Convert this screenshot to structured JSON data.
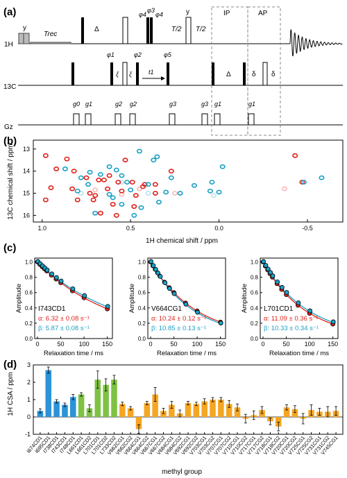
{
  "panels": {
    "a": "(a)",
    "b": "(b)",
    "c": "(c)",
    "d": "(d)"
  },
  "pulse_sequence": {
    "channels": [
      "1H",
      "13C",
      "Gz"
    ],
    "h_labels": [
      "y",
      "Trec",
      "Δ",
      "φ4",
      "φ3",
      "φ4",
      "T/2",
      "y",
      "T/2",
      "IP",
      "AP"
    ],
    "c_labels": [
      "φ1",
      "ξ",
      "ξ",
      "φ2",
      "t1",
      "φ5",
      "Δ",
      "δ",
      "δ"
    ],
    "g_labels": [
      "g0",
      "g1",
      "g2",
      "g2",
      "g3",
      "g3",
      "g1",
      "g1"
    ]
  },
  "colors": {
    "alpha": "#e0201b",
    "beta": "#1a9fc6",
    "ile": "#2b93d8",
    "leu": "#7dc242",
    "val": "#f5a623"
  },
  "spectrum": {
    "xlabel": "1H chemical shift / ppm",
    "ylabel": "13C chemical shift / ppm",
    "xticks": [
      "1.0",
      "0.5",
      "0.0",
      "-0.5"
    ],
    "yticks": [
      "13",
      "14",
      "15",
      "16"
    ],
    "xlim": [
      1.05,
      -0.7
    ],
    "ylim": [
      12.6,
      16.3
    ],
    "peaks_red": [
      [
        0.98,
        13.3
      ],
      [
        0.92,
        13.9
      ],
      [
        0.86,
        13.45
      ],
      [
        0.82,
        14.0
      ],
      [
        0.75,
        14.3
      ],
      [
        0.73,
        15.0
      ],
      [
        0.71,
        15.3
      ],
      [
        0.68,
        14.4
      ],
      [
        0.65,
        14.4
      ],
      [
        0.63,
        14.8
      ],
      [
        0.6,
        15.5
      ],
      [
        0.57,
        14.5
      ],
      [
        0.53,
        13.5
      ],
      [
        0.49,
        14.5
      ],
      [
        0.47,
        15.1
      ],
      [
        0.42,
        14.6
      ],
      [
        0.36,
        14.6
      ],
      [
        0.27,
        14.0
      ],
      [
        0.95,
        14.75
      ],
      [
        0.83,
        14.8
      ],
      [
        0.8,
        15.3
      ],
      [
        0.67,
        15.9
      ],
      [
        0.62,
        14.2
      ],
      [
        0.55,
        14.9
      ],
      [
        0.48,
        15.6
      ],
      [
        0.43,
        14.7
      ],
      [
        0.36,
        15.0
      ],
      [
        -0.43,
        13.3
      ],
      [
        -0.47,
        14.5
      ],
      [
        0.98,
        15.3
      ],
      [
        0.7,
        15.1
      ],
      [
        0.58,
        16.0
      ]
    ],
    "peaks_red_faint": [
      [
        0.7,
        14.85
      ],
      [
        0.55,
        15.05
      ],
      [
        0.45,
        14.8
      ],
      [
        0.25,
        15.0
      ],
      [
        -0.37,
        14.8
      ]
    ],
    "peaks_blue": [
      [
        0.78,
        14.3
      ],
      [
        0.73,
        14.05
      ],
      [
        0.7,
        15.9
      ],
      [
        0.62,
        13.8
      ],
      [
        0.58,
        13.95
      ],
      [
        0.55,
        14.2
      ],
      [
        0.52,
        14.5
      ],
      [
        0.5,
        14.85
      ],
      [
        0.45,
        13.1
      ],
      [
        0.4,
        14.6
      ],
      [
        0.37,
        13.5
      ],
      [
        0.27,
        14.3
      ],
      [
        0.22,
        15.0
      ],
      [
        0.04,
        14.5
      ],
      [
        0.0,
        14.95
      ],
      [
        -0.02,
        13.8
      ],
      [
        -0.58,
        14.3
      ],
      [
        0.87,
        13.9
      ],
      [
        0.8,
        14.9
      ],
      [
        0.67,
        14.15
      ],
      [
        0.6,
        15.2
      ],
      [
        0.55,
        15.5
      ],
      [
        0.48,
        16.0
      ],
      [
        0.34,
        15.4
      ],
      [
        0.3,
        14.95
      ],
      [
        0.14,
        14.65
      ],
      [
        0.05,
        14.9
      ],
      [
        -0.48,
        14.5
      ],
      [
        0.35,
        13.35
      ],
      [
        0.74,
        14.6
      ],
      [
        0.62,
        15.05
      ],
      [
        0.44,
        15.65
      ]
    ],
    "peaks_blue_faint": [
      [
        0.78,
        15.0
      ],
      [
        0.55,
        14.5
      ],
      [
        0.4,
        15.0
      ],
      [
        0.03,
        15.1
      ]
    ]
  },
  "decays": [
    {
      "name": "I743CD1",
      "alpha_text": "α: 6.32 ± 0.08 s⁻¹",
      "beta_text": "β: 5.87 ± 0.08 s⁻¹",
      "alpha_rate": 6.32,
      "beta_rate": 5.87
    },
    {
      "name": "V664CG1",
      "alpha_text": "α: 10.24 ± 0.12 s⁻¹",
      "beta_text": "β: 10.85 ± 0.13 s⁻¹",
      "alpha_rate": 10.24,
      "beta_rate": 10.85
    },
    {
      "name": "L701CD1",
      "alpha_text": "α: 11.09 ± 0.36 s⁻¹",
      "beta_text": "β: 10.33 ± 0.34 s⁻¹",
      "alpha_rate": 11.09,
      "beta_rate": 10.33
    }
  ],
  "decay_axes": {
    "xlabel": "Relaxation time / ms",
    "ylabel": "Amplitude",
    "xticks": [
      "0",
      "50",
      "100",
      "150"
    ],
    "yticks": [
      "1.0",
      "0.8",
      "0.6",
      "0.4",
      "0.2",
      "0.0"
    ],
    "times": [
      0,
      5,
      10,
      15,
      20,
      30,
      40,
      50,
      75,
      100,
      150
    ]
  },
  "chart_data": {
    "type": "bar",
    "ylabel": "1H CSA / ppm",
    "xlabel": "methyl group",
    "ylim": [
      -1,
      3
    ],
    "yticks": [
      "3",
      "2",
      "1",
      "0",
      "-1"
    ],
    "categories": [
      "I674CD1",
      "I695CD1",
      "I738CD1",
      "I743CD1",
      "I748CD1",
      "L661CD1",
      "L661CD2",
      "L701CD1",
      "L701CD2",
      "L733CD2",
      "V662CG1",
      "V662CG2",
      "V664CG1",
      "V664CG2",
      "V667CG1",
      "V667CG2",
      "V684CG1",
      "V684CG2",
      "V692CG1",
      "V692CG2",
      "V703CG1",
      "V703CG2",
      "V707CG1",
      "V707CG2",
      "V710CG1",
      "V710CG2",
      "V717CG1",
      "V717CG2",
      "V718CG1",
      "V718CG2",
      "V720CG1",
      "V720CG2",
      "V725CG1",
      "V725CG2",
      "V731CG1",
      "V731CG2",
      "V745CG1"
    ],
    "values": [
      0.35,
      2.7,
      0.9,
      0.7,
      1.15,
      1.3,
      0.5,
      2.15,
      1.85,
      2.15,
      0.75,
      0.5,
      -0.7,
      0.8,
      1.3,
      0.35,
      0.7,
      0.2,
      0.8,
      0.75,
      0.9,
      1.0,
      1.0,
      0.75,
      0.55,
      -0.1,
      0.1,
      0.4,
      -0.25,
      -0.55,
      0.55,
      0.45,
      -0.1,
      0.4,
      0.3,
      0.3,
      0.35
    ],
    "errors": [
      0.12,
      0.18,
      0.1,
      0.1,
      0.15,
      0.1,
      0.2,
      0.5,
      0.35,
      0.25,
      0.1,
      0.1,
      0.25,
      0.1,
      0.4,
      0.15,
      0.2,
      0.2,
      0.1,
      0.1,
      0.15,
      0.12,
      0.12,
      0.2,
      0.2,
      0.25,
      0.25,
      0.2,
      0.2,
      0.25,
      0.15,
      0.2,
      0.3,
      0.3,
      0.2,
      0.3,
      0.25
    ],
    "groups": [
      "ile",
      "ile",
      "ile",
      "ile",
      "ile",
      "leu",
      "leu",
      "leu",
      "leu",
      "leu",
      "val",
      "val",
      "val",
      "val",
      "val",
      "val",
      "val",
      "val",
      "val",
      "val",
      "val",
      "val",
      "val",
      "val",
      "val",
      "val",
      "val",
      "val",
      "val",
      "val",
      "val",
      "val",
      "val",
      "val",
      "val",
      "val",
      "val"
    ]
  }
}
